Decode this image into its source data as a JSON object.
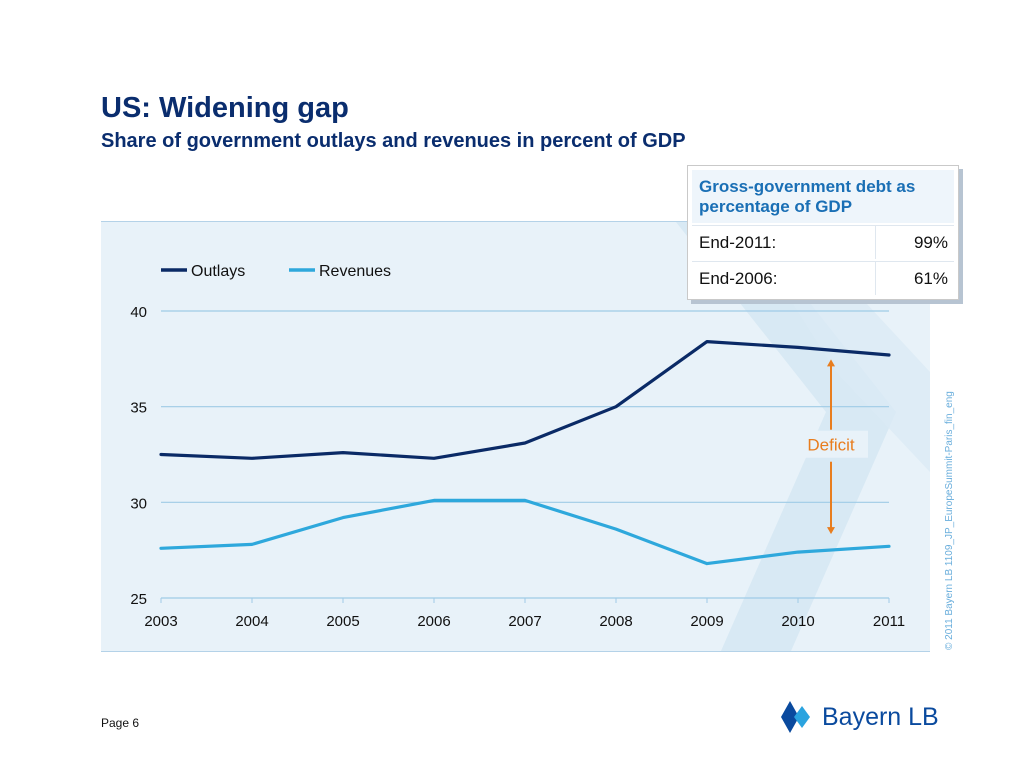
{
  "slide": {
    "title": "US: Widening gap",
    "subtitle": "Share of government outlays and revenues in percent of GDP",
    "page_label": "Page 6",
    "copyright": "© 2011 Bayern LB  1109_JP_EuropeSummit-Paris_fin_eng"
  },
  "debt_table": {
    "header": "Gross-government debt as percentage of GDP",
    "rows": [
      {
        "label": "End-2011:",
        "value": "99%"
      },
      {
        "label": "End-2006:",
        "value": "61%"
      }
    ]
  },
  "logo": {
    "text": "Bayern LB",
    "icon": "bayernlb-diamond-icon",
    "color": "#0a4a9e"
  },
  "chart_data": {
    "type": "line",
    "x": [
      "2003",
      "2004",
      "2005",
      "2006",
      "2007",
      "2008",
      "2009",
      "2010",
      "2011"
    ],
    "series": [
      {
        "name": "Outlays",
        "color": "#0a2a66",
        "values": [
          32.5,
          32.3,
          32.6,
          32.3,
          33.1,
          35.0,
          38.4,
          38.1,
          37.7
        ]
      },
      {
        "name": "Revenues",
        "color": "#2ea8dc",
        "values": [
          27.6,
          27.8,
          29.2,
          30.1,
          30.1,
          28.6,
          26.8,
          27.4,
          27.7
        ]
      }
    ],
    "ylim": [
      25,
      40
    ],
    "yticks": [
      "25",
      "30",
      "35",
      "40"
    ],
    "grid": true,
    "legend_position": "top-left",
    "annotation": {
      "text": "Deficit",
      "color": "#e87d1e",
      "x": "2010",
      "y_from": 38.1,
      "y_to": 27.4
    }
  }
}
